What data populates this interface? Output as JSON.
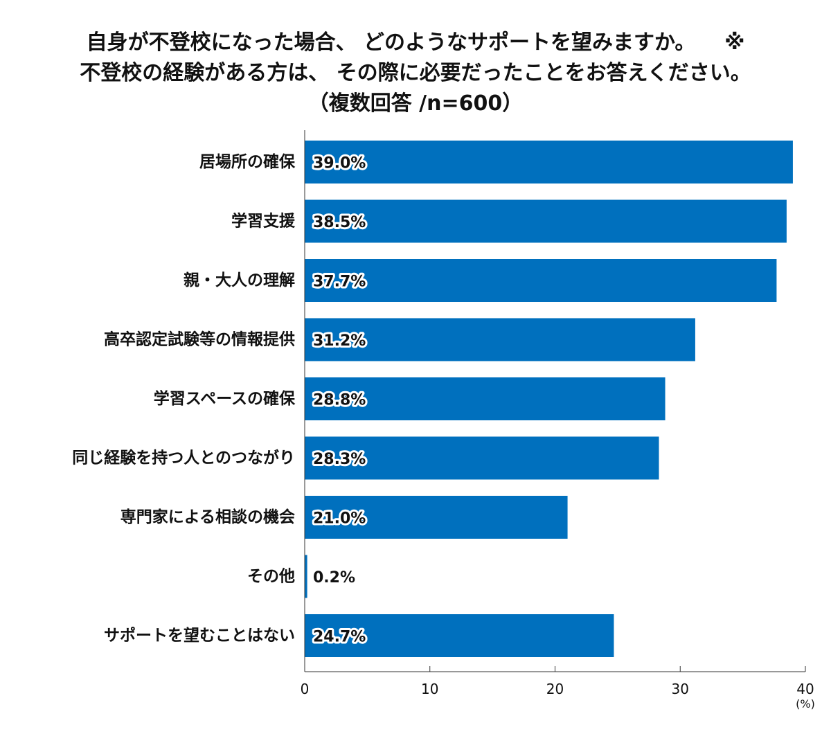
{
  "chart_data": {
    "type": "bar",
    "orientation": "horizontal",
    "title_lines": [
      "自身が不登校になった場合、 どのようなサポートを望みますか。    ※",
      "不登校の経験がある方は、 その際に必要だったことをお答えください。",
      "（複数回答 /n=600）"
    ],
    "categories": [
      "居場所の確保",
      "学習支援",
      "親・大人の理解",
      "高卒認定試験等の情報提供",
      "学習スペースの確保",
      "同じ経験を持つ人とのつながり",
      "専門家による相談の機会",
      "その他",
      "サポートを望むことはない"
    ],
    "values": [
      39.0,
      38.5,
      37.7,
      31.2,
      28.8,
      28.3,
      21.0,
      0.2,
      24.7
    ],
    "value_labels": [
      "39.0%",
      "38.5%",
      "37.7%",
      "31.2%",
      "28.8%",
      "28.3%",
      "21.0%",
      "0.2%",
      "24.7%"
    ],
    "xlim": [
      0,
      40
    ],
    "xticks": [
      0,
      10,
      20,
      30,
      40
    ],
    "xtick_labels": [
      "0",
      "10",
      "20",
      "30",
      "40"
    ],
    "unit_label": "(%)",
    "bar_color": "#0070BE",
    "grid": false,
    "legend": "none"
  }
}
